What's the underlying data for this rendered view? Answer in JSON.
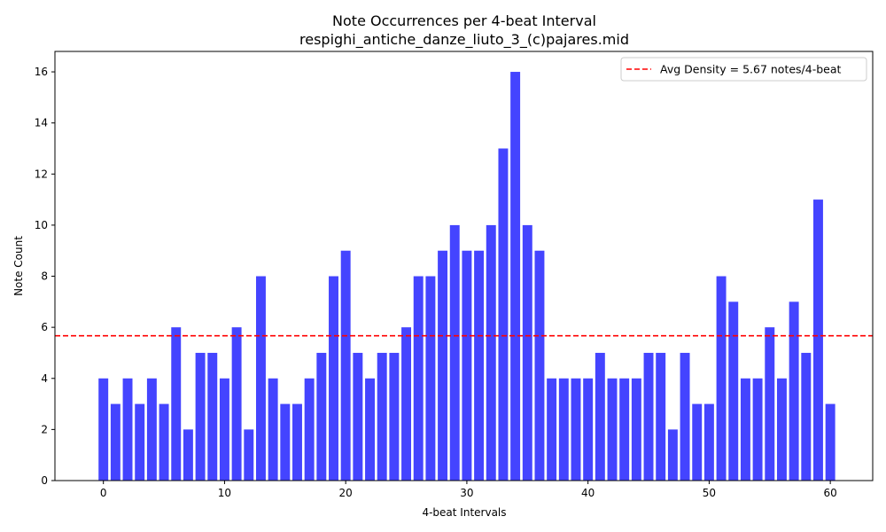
{
  "chart_data": {
    "type": "bar",
    "title": "Note Occurrences per 4-beat Interval",
    "subtitle": "respighi_antiche_danze_liuto_3_(c)pajares.mid",
    "xlabel": "4-beat Intervals",
    "ylabel": "Note Count",
    "x": [
      0,
      1,
      2,
      3,
      4,
      5,
      6,
      7,
      8,
      9,
      10,
      11,
      12,
      13,
      14,
      15,
      16,
      17,
      18,
      19,
      20,
      21,
      22,
      23,
      24,
      25,
      26,
      27,
      28,
      29,
      30,
      31,
      32,
      33,
      34,
      35,
      36,
      37,
      38,
      39,
      40,
      41,
      42,
      43,
      44,
      45,
      46,
      47,
      48,
      49,
      50,
      51,
      52,
      53,
      54,
      55,
      56,
      57,
      58,
      59,
      60
    ],
    "values": [
      4,
      3,
      4,
      3,
      4,
      3,
      6,
      2,
      5,
      5,
      4,
      6,
      2,
      8,
      4,
      3,
      3,
      4,
      5,
      8,
      9,
      5,
      4,
      5,
      5,
      6,
      8,
      8,
      9,
      10,
      9,
      9,
      10,
      13,
      16,
      10,
      9,
      4,
      4,
      4,
      4,
      5,
      4,
      4,
      4,
      5,
      5,
      2,
      5,
      3,
      3,
      8,
      7,
      4,
      4,
      6,
      4,
      7,
      5,
      11,
      3
    ],
    "xlim": [
      -4,
      63.5
    ],
    "ylim": [
      0,
      16.8
    ],
    "xticks": [
      0,
      10,
      20,
      30,
      40,
      50,
      60
    ],
    "yticks": [
      0,
      2,
      4,
      6,
      8,
      10,
      12,
      14,
      16
    ],
    "bar_color": "#4444ff",
    "reference_line": {
      "value": 5.67,
      "color": "#ff0000",
      "style": "dashed"
    },
    "legend": {
      "placement": "top-right",
      "entries": [
        "Avg Density = 5.67 notes/4-beat"
      ]
    },
    "grid": false
  }
}
